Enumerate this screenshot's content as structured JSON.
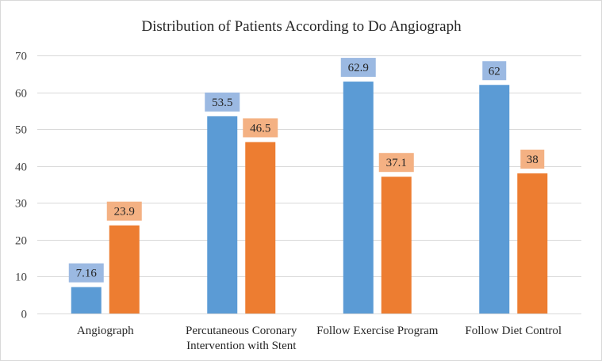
{
  "chart_data": {
    "type": "bar",
    "title": "Distribution of Patients According to Do Angiograph",
    "categories": [
      [
        "Angiograph"
      ],
      [
        "Percutaneous Coronary",
        "Intervention with Stent"
      ],
      [
        "Follow Exercise Program"
      ],
      [
        "Follow Diet Control"
      ]
    ],
    "series": [
      {
        "color": "#5b9bd5",
        "label_bg": "#9bb9e2",
        "values": [
          7.16,
          53.5,
          62.9,
          62
        ]
      },
      {
        "color": "#ed7d31",
        "label_bg": "#f4b183",
        "values": [
          23.9,
          46.5,
          37.1,
          38
        ]
      }
    ],
    "yticks": [
      0,
      10,
      20,
      30,
      40,
      50,
      60,
      70
    ],
    "ylim": [
      0,
      70
    ],
    "xlabel": "",
    "ylabel": "",
    "grid": true,
    "legend": "none",
    "gridline_color": "#d9d9d9"
  }
}
